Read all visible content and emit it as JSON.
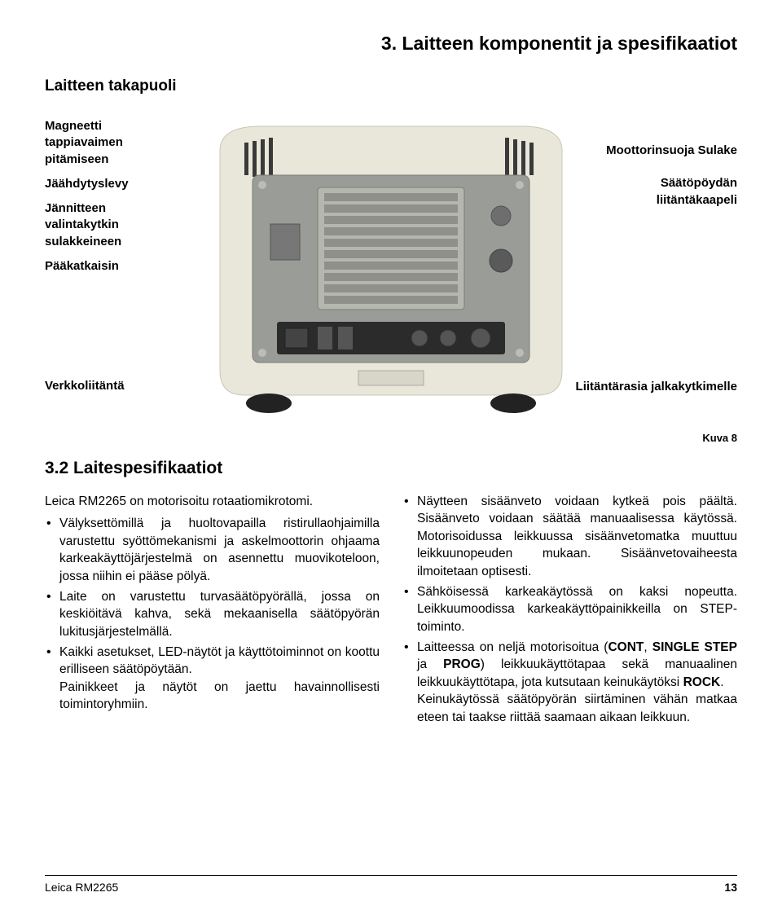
{
  "header": {
    "section_title": "3.   Laitteen komponentit ja spesifikaatiot",
    "subtitle": "Laitteen takapuoli"
  },
  "diagram": {
    "left": [
      "Magneetti tappiavaimen pitämiseen",
      "Jäähdytyslevy",
      "Jännitteen valintakytkin sulakkeineen",
      "Pääkatkaisin"
    ],
    "right": [
      "Moottorinsuoja Sulake",
      "Säätöpöydän liitäntäkaapeli"
    ],
    "bottom_left": "Verkkoliitäntä",
    "bottom_right": "Liitäntärasia jalkakytkimelle",
    "photo": {
      "body_color": "#e9e7d9",
      "panel_color": "#9a9c98",
      "heatsink_color": "#b5b6ae",
      "heatsink_fin_color": "#8f9089",
      "connector_panel": "#2b2b2b",
      "screw_color": "#bcbcbc",
      "foot_color": "#222222",
      "slot_color": "#3a3a3a"
    }
  },
  "figure_label": "Kuva 8",
  "spec_heading": "3.2   Laitespesifikaatiot",
  "col_left": {
    "intro": "Leica RM2265 on motorisoitu rotaatiomikrotomi.",
    "items": [
      "Välyksettömillä ja huoltovapailla ristirullaohjaimilla varustettu syöttömekanismi ja askelmoottorin ohjaama karkeakäyttöjärjestelmä on asennettu muovikoteloon, jossa niihin ei pääse pölyä.",
      "Laite on varustettu turvasäätöpyörällä, jossa on keskiöitävä kahva, sekä mekaanisella säätöpyörän lukitusjärjestelmällä.",
      "Kaikki asetukset, LED-näytöt ja käyttötoiminnot on koottu erilliseen säätöpöytään.|Painikkeet ja näytöt on jaettu havainnollisesti toimintoryhmiin."
    ]
  },
  "col_right": {
    "items": [
      "Näytteen sisäänveto voidaan kytkeä pois päältä. Sisäänveto voidaan säätää manuaalisessa käytössä. Motorisoidussa leikkuussa sisäänvetomatka muuttuu leikkuunopeuden mukaan. Sisäänvetovaiheesta ilmoitetaan optisesti.",
      "Sähköisessä karkeakäytössä on kaksi nopeutta. Leikkuumoodissa karkeakäyttöpainikkeilla on STEP-toiminto.",
      "Laitteessa on neljä motorisoitua (CONT, SINGLE STEP ja PROG) leikkuukäyttötapaa sekä manuaalinen leikkuukäyttötapa, jota kutsutaan keinukäytöksi ROCK.|Keinukäytössä säätöpyörän siirtäminen vähän matkaa eteen tai taakse riittää saamaan aikaan leikkuun."
    ],
    "bold_terms": [
      "CONT",
      "SINGLE STEP",
      "PROG",
      "ROCK"
    ]
  },
  "footer": {
    "left": "Leica RM2265",
    "page": "13"
  }
}
